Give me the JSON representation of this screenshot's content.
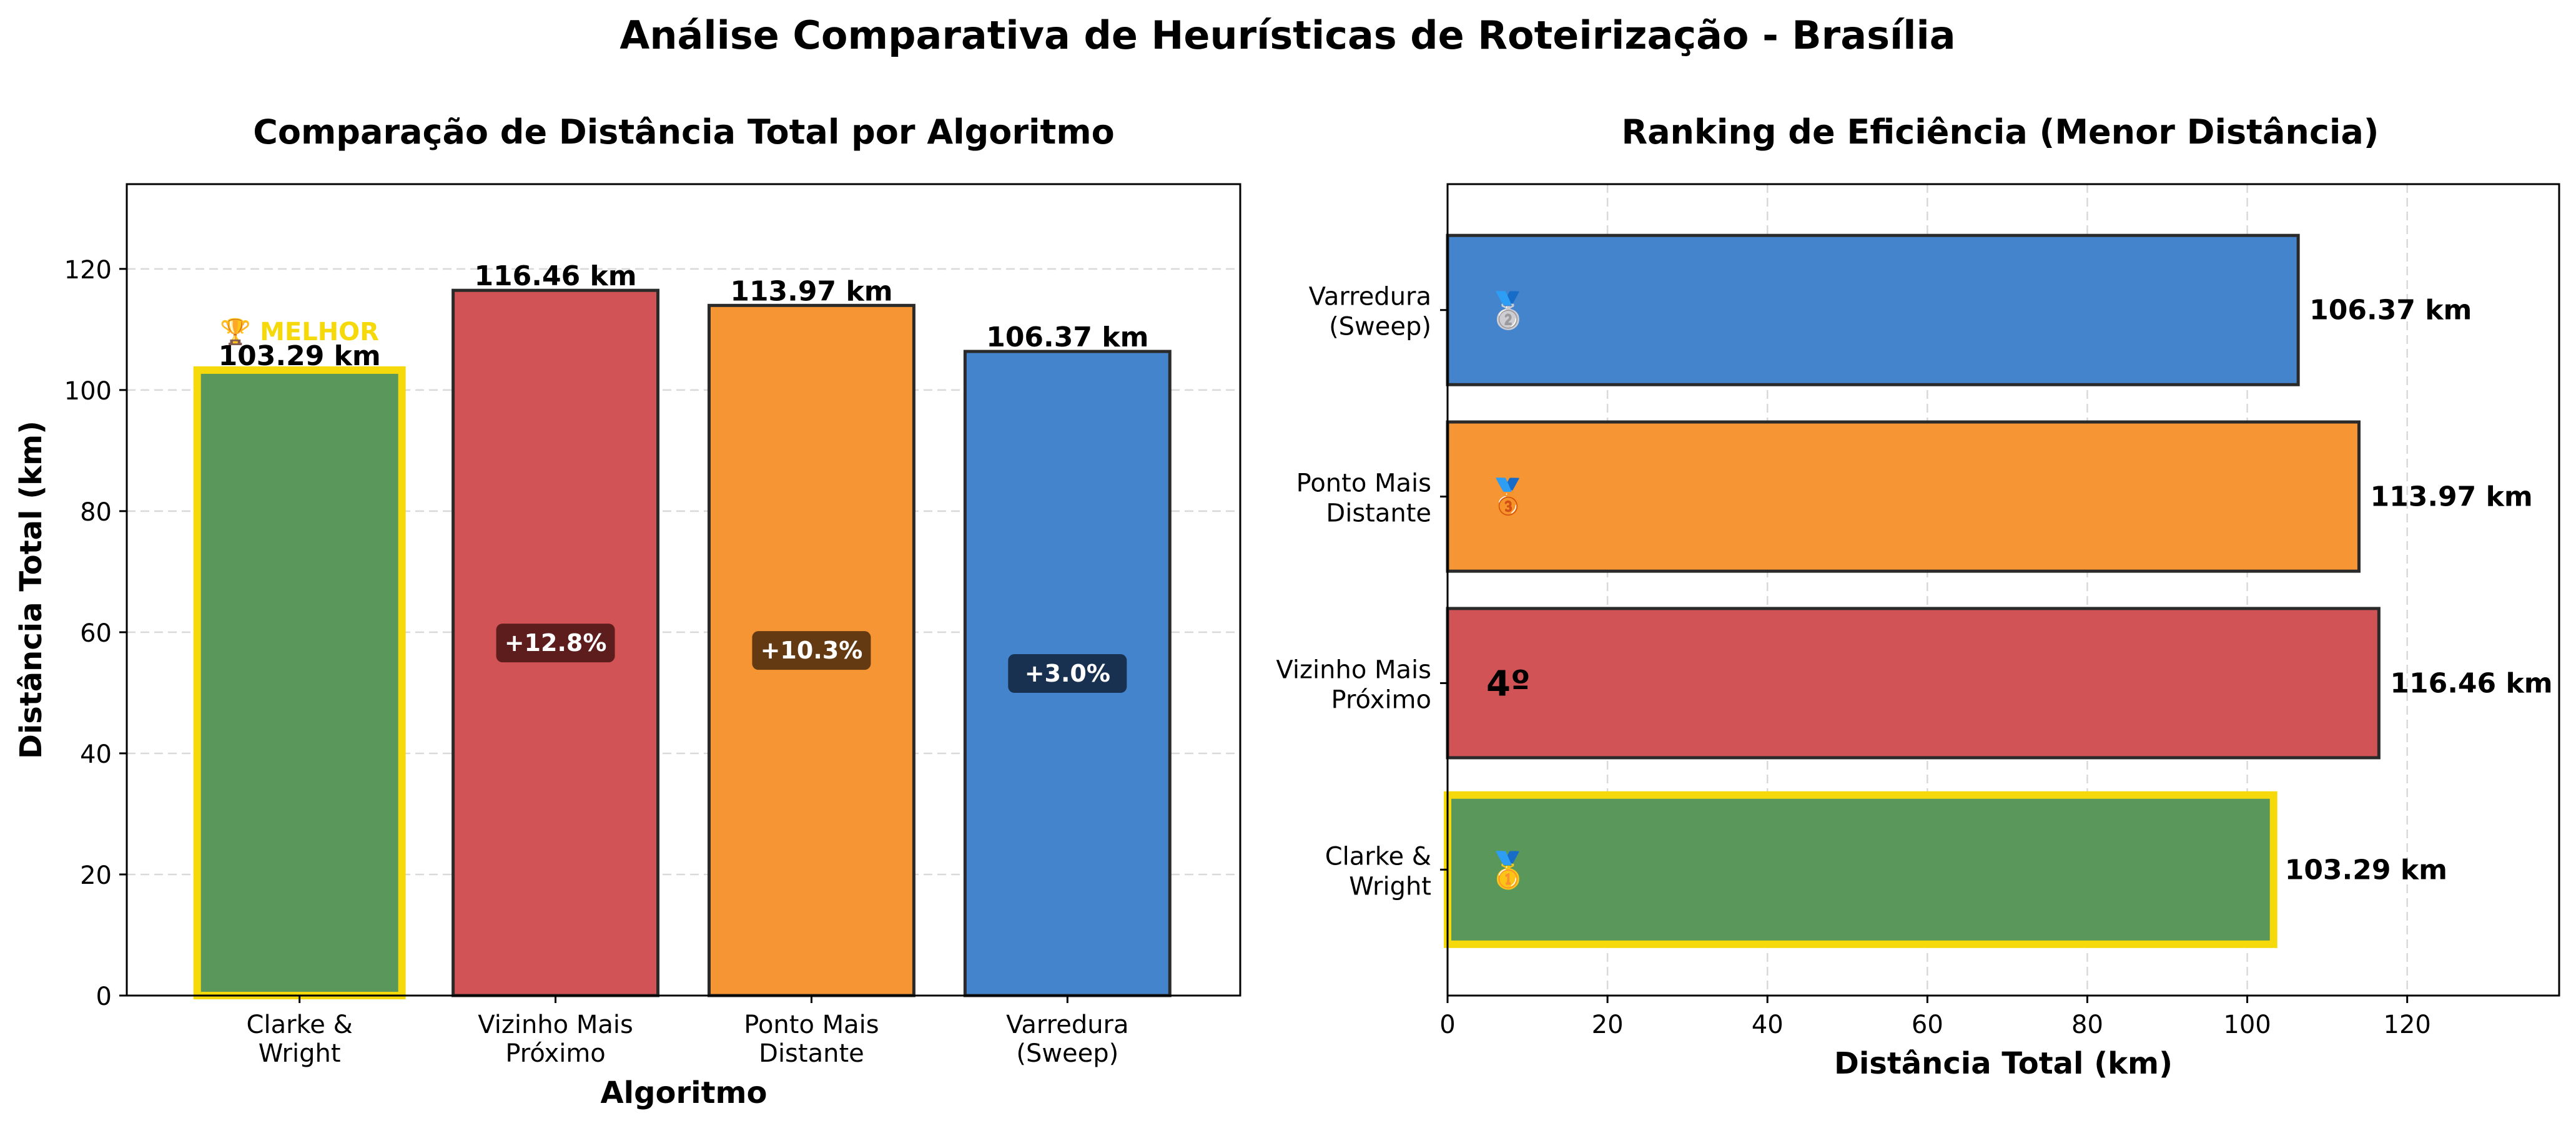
{
  "figure_title": "Análise Comparativa de Heurísticas de Roteirização - Brasília",
  "colors": {
    "clarke_wright": "#59985a",
    "vizinho": "#d15355",
    "ponto": "#f69533",
    "varredura": "#4484cc",
    "highlight": "#f5d90a",
    "melhor_text": "#f5d90a",
    "grid": "#d9d9d9"
  },
  "chart_data": [
    {
      "type": "bar",
      "title": "Comparação de Distância Total por Algoritmo",
      "xlabel": "Algoritmo",
      "ylabel": "Distância Total (km)",
      "categories": [
        "Clarke &\nWright",
        "Vizinho Mais\nPróximo",
        "Ponto Mais\nDistante",
        "Varredura\n(Sweep)"
      ],
      "values": [
        103.29,
        116.46,
        113.97,
        106.37
      ],
      "value_labels": [
        "103.29 km",
        "116.46 km",
        "113.97 km",
        "106.37 km"
      ],
      "pct_labels": [
        "",
        "+12.8%",
        "+10.3%",
        "+3.0%"
      ],
      "pct_box_colors": [
        "",
        "#4a1414",
        "#4a2a0e",
        "#12223a"
      ],
      "best_label": "🏆 MELHOR",
      "best_index": 0,
      "ylim": [
        0,
        134
      ],
      "yticks": [
        0,
        20,
        40,
        60,
        80,
        100,
        120
      ],
      "grid": "y-dashed"
    },
    {
      "type": "bar-horizontal",
      "title": "Ranking de Eficiência (Menor Distância)",
      "xlabel": "Distância Total (km)",
      "ylabel": "",
      "categories": [
        "Clarke &\nWright",
        "Vizinho Mais\nPróximo",
        "Ponto Mais\nDistante",
        "Varredura\n(Sweep)"
      ],
      "values": [
        103.29,
        116.46,
        113.97,
        106.37
      ],
      "value_labels": [
        "103.29 km",
        "116.46 km",
        "113.97 km",
        "106.37 km"
      ],
      "rank_labels": [
        "🥇",
        "4º",
        "🥉",
        "🥈"
      ],
      "highlight_index": 0,
      "xlim": [
        0,
        139
      ],
      "xticks": [
        0,
        20,
        40,
        60,
        80,
        100,
        120
      ],
      "grid": "x-dashed"
    }
  ]
}
